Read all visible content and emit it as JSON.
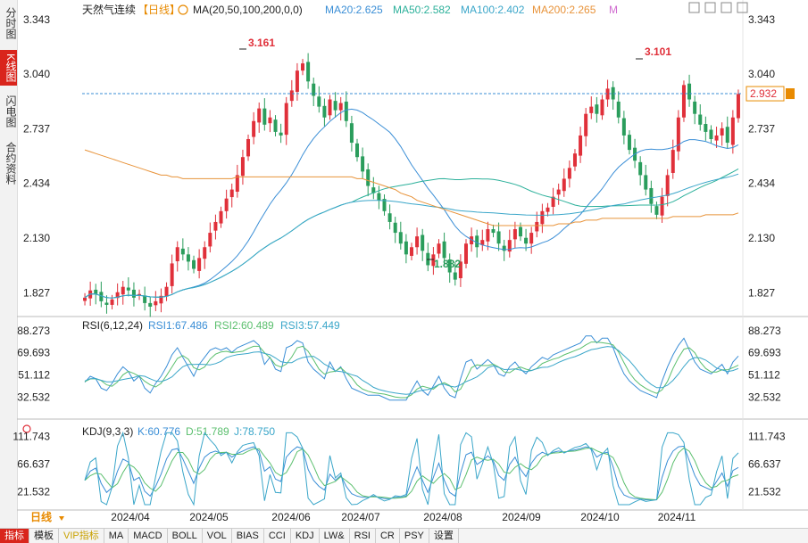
{
  "sidebar": {
    "tabs": [
      {
        "label": "分时图",
        "active": false
      },
      {
        "label": "K线图",
        "active": true
      },
      {
        "label": "闪电图",
        "active": false
      },
      {
        "label": "合约资料",
        "active": false
      }
    ]
  },
  "header": {
    "instrument": "天然气连续",
    "period": "【日线】",
    "ma_label": "MA(20,50,100,200,0,0)",
    "m_label": "M",
    "ma": [
      {
        "label": "MA20:2.625",
        "color": "#3a8ed6"
      },
      {
        "label": "MA50:2.582",
        "color": "#2bb09a"
      },
      {
        "label": "MA100:2.402",
        "color": "#3aa6c9"
      },
      {
        "label": "MA200:2.265",
        "color": "#e8933a"
      }
    ]
  },
  "rsi": {
    "title": "RSI(6,12,24)",
    "values": [
      {
        "label": "RSI1:67.486",
        "color": "#3a8ed6"
      },
      {
        "label": "RSI2:60.489",
        "color": "#5bbf6e"
      },
      {
        "label": "RSI3:57.449",
        "color": "#3aa6c9"
      }
    ],
    "ticks": [
      "88.273",
      "69.693",
      "51.112",
      "32.532"
    ]
  },
  "kdj": {
    "title": "KDJ(9,3,3)",
    "values": [
      {
        "label": "K:60.776",
        "color": "#3a8ed6"
      },
      {
        "label": "D:51.789",
        "color": "#5bbf6e"
      },
      {
        "label": "J:78.750",
        "color": "#3aa6c9"
      }
    ],
    "ticks": [
      "111.743",
      "66.637",
      "21.532"
    ]
  },
  "chart_data": {
    "type": "candlestick",
    "y_ticks": [
      "3.343",
      "3.040",
      "2.737",
      "2.434",
      "2.130",
      "1.827"
    ],
    "ylim": [
      1.72,
      3.343
    ],
    "x_labels": [
      "日线",
      "2024/04",
      "2024/05",
      "2024/06",
      "2024/07",
      "2024/08",
      "2024/09",
      "2024/10",
      "2024/11"
    ],
    "annotations": {
      "high1": "3.161",
      "low1": "1.882",
      "high2": "3.101"
    },
    "current_price": "2.932",
    "closes": [
      1.8,
      1.84,
      1.82,
      1.78,
      1.76,
      1.79,
      1.83,
      1.86,
      1.84,
      1.8,
      1.82,
      1.77,
      1.75,
      1.78,
      1.81,
      1.86,
      1.99,
      2.08,
      2.04,
      2.0,
      1.96,
      2.02,
      2.08,
      2.16,
      2.22,
      2.28,
      2.35,
      2.4,
      2.48,
      2.58,
      2.68,
      2.78,
      2.85,
      2.76,
      2.8,
      2.72,
      2.7,
      2.88,
      2.95,
      3.06,
      3.1,
      3.0,
      2.92,
      2.86,
      2.8,
      2.9,
      2.84,
      2.88,
      2.78,
      2.66,
      2.58,
      2.5,
      2.42,
      2.38,
      2.34,
      2.28,
      2.22,
      2.16,
      2.1,
      2.04,
      2.08,
      2.14,
      2.06,
      1.98,
      2.04,
      2.1,
      2.02,
      1.94,
      1.9,
      2.0,
      2.1,
      2.14,
      2.08,
      2.12,
      2.18,
      2.16,
      2.1,
      2.06,
      2.12,
      2.18,
      2.14,
      2.1,
      2.16,
      2.22,
      2.28,
      2.3,
      2.36,
      2.4,
      2.46,
      2.52,
      2.6,
      2.7,
      2.82,
      2.86,
      2.82,
      2.9,
      2.96,
      2.9,
      2.8,
      2.7,
      2.62,
      2.56,
      2.48,
      2.4,
      2.32,
      2.26,
      2.36,
      2.48,
      2.62,
      2.8,
      2.98,
      2.9,
      2.82,
      2.76,
      2.72,
      2.68,
      2.7,
      2.74,
      2.66,
      2.8,
      2.93
    ],
    "ma200": [
      2.62,
      2.61,
      2.6,
      2.59,
      2.58,
      2.57,
      2.56,
      2.55,
      2.54,
      2.53,
      2.52,
      2.51,
      2.5,
      2.49,
      2.48,
      2.48,
      2.47,
      2.47,
      2.46,
      2.46,
      2.46,
      2.46,
      2.46,
      2.46,
      2.46,
      2.46,
      2.46,
      2.46,
      2.47,
      2.47,
      2.47,
      2.47,
      2.47,
      2.47,
      2.47,
      2.47,
      2.47,
      2.47,
      2.47,
      2.47,
      2.47,
      2.47,
      2.47,
      2.47,
      2.47,
      2.47,
      2.47,
      2.47,
      2.47,
      2.47,
      2.46,
      2.46,
      2.45,
      2.44,
      2.43,
      2.42,
      2.41,
      2.4,
      2.38,
      2.37,
      2.36,
      2.34,
      2.33,
      2.32,
      2.31,
      2.3,
      2.29,
      2.28,
      2.27,
      2.26,
      2.25,
      2.24,
      2.23,
      2.22,
      2.21,
      2.2,
      2.2,
      2.2,
      2.2,
      2.2,
      2.2,
      2.2,
      2.2,
      2.2,
      2.2,
      2.2,
      2.2,
      2.21,
      2.21,
      2.21,
      2.22,
      2.22,
      2.23,
      2.23,
      2.23,
      2.24,
      2.24,
      2.24,
      2.24,
      2.24,
      2.24,
      2.24,
      2.24,
      2.24,
      2.24,
      2.24,
      2.24,
      2.24,
      2.25,
      2.25,
      2.25,
      2.25,
      2.25,
      2.25,
      2.26,
      2.26,
      2.26,
      2.26,
      2.26,
      2.26,
      2.27
    ],
    "rsi1": [
      45,
      50,
      48,
      40,
      38,
      44,
      52,
      58,
      54,
      46,
      50,
      40,
      36,
      44,
      50,
      58,
      68,
      74,
      66,
      58,
      50,
      60,
      66,
      72,
      74,
      72,
      74,
      70,
      74,
      76,
      78,
      80,
      76,
      60,
      66,
      56,
      54,
      74,
      76,
      80,
      78,
      62,
      56,
      52,
      48,
      62,
      54,
      58,
      48,
      40,
      38,
      36,
      34,
      34,
      34,
      32,
      30,
      30,
      30,
      30,
      38,
      46,
      38,
      34,
      42,
      50,
      40,
      34,
      32,
      48,
      62,
      64,
      56,
      60,
      64,
      60,
      52,
      50,
      58,
      62,
      56,
      52,
      58,
      62,
      66,
      64,
      68,
      70,
      72,
      74,
      76,
      78,
      84,
      84,
      78,
      82,
      82,
      74,
      62,
      52,
      46,
      42,
      38,
      36,
      34,
      32,
      46,
      58,
      68,
      76,
      82,
      72,
      62,
      56,
      54,
      52,
      56,
      60,
      52,
      62,
      67
    ],
    "kdj_k": [
      40,
      55,
      60,
      35,
      20,
      28,
      55,
      75,
      70,
      40,
      45,
      22,
      14,
      30,
      50,
      75,
      90,
      92,
      75,
      55,
      35,
      60,
      78,
      85,
      88,
      84,
      86,
      78,
      84,
      88,
      92,
      95,
      88,
      55,
      62,
      42,
      38,
      78,
      88,
      95,
      92,
      58,
      40,
      30,
      24,
      50,
      40,
      48,
      30,
      18,
      14,
      12,
      12,
      14,
      12,
      10,
      10,
      12,
      12,
      14,
      40,
      62,
      40,
      20,
      45,
      68,
      40,
      20,
      14,
      52,
      82,
      86,
      66,
      72,
      80,
      72,
      48,
      40,
      66,
      78,
      58,
      46,
      68,
      80,
      86,
      82,
      86,
      88,
      86,
      88,
      90,
      92,
      95,
      92,
      78,
      84,
      86,
      62,
      30,
      16,
      12,
      10,
      10,
      8,
      8,
      8,
      45,
      72,
      88,
      95,
      96,
      72,
      48,
      32,
      28,
      24,
      38,
      52,
      30,
      56,
      61
    ]
  }
}
